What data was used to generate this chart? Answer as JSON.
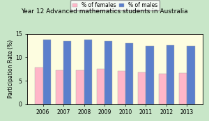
{
  "title": "Year 12 Advanced mathematics students in Australia",
  "years": [
    "2006",
    "2007",
    "2008",
    "2009",
    "2010",
    "2011",
    "2012",
    "2013"
  ],
  "females": [
    7.8,
    7.2,
    7.3,
    7.5,
    7.1,
    6.8,
    6.5,
    6.7
  ],
  "males": [
    13.7,
    13.5,
    13.8,
    13.4,
    13.1,
    12.5,
    12.6,
    12.5
  ],
  "female_color": "#ffb6c8",
  "male_color": "#5b7fcc",
  "female_label": "% of females",
  "male_label": "% of males",
  "ylabel": "Participation Rate (%)",
  "ylim": [
    0,
    15
  ],
  "yticks": [
    0,
    5,
    10,
    15
  ],
  "bg_outer": "#c8e6c8",
  "bg_inner": "#fdfde0",
  "bar_width": 0.38,
  "title_fontsize": 6.5,
  "axis_fontsize": 5.5,
  "tick_fontsize": 5.5,
  "legend_fontsize": 5.5
}
